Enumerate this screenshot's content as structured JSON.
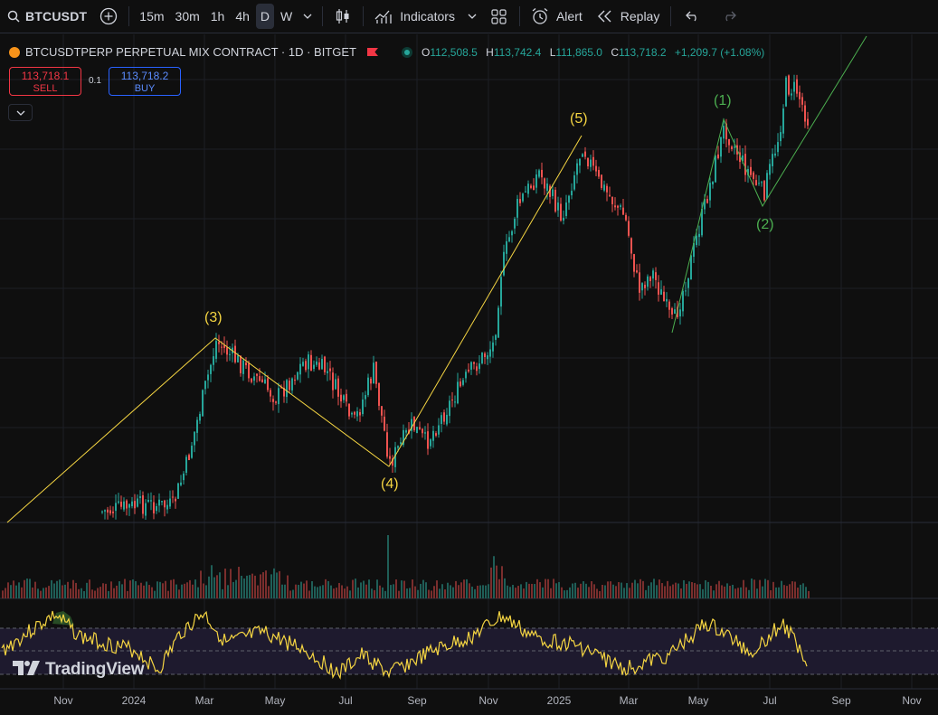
{
  "toolbar": {
    "symbol": "BTCUSDT",
    "intervals": [
      "15m",
      "30m",
      "1h",
      "4h",
      "D",
      "W"
    ],
    "active_interval": "D",
    "indicators_label": "Indicators",
    "alert_label": "Alert",
    "replay_label": "Replay"
  },
  "legend": {
    "title": "BTCUSDTPERP PERPETUAL MIX CONTRACT · 1D · BITGET",
    "open_label": "O",
    "open": "112,508.5",
    "high_label": "H",
    "high": "113,742.4",
    "low_label": "L",
    "low": "111,865.0",
    "close_label": "C",
    "close": "113,718.2",
    "change": "+1,209.7 (+1.08%)"
  },
  "trade": {
    "sell_price": "113,718.1",
    "sell_label": "SELL",
    "spread": "0.1",
    "buy_price": "113,718.2",
    "buy_label": "BUY"
  },
  "waves": {
    "w3": "(3)",
    "w4": "(4)",
    "w5": "(5)",
    "w1": "(1)",
    "w2": "(2)"
  },
  "xaxis": [
    "Nov",
    "2024",
    "Mar",
    "May",
    "Jul",
    "Sep",
    "Nov",
    "2025",
    "Mar",
    "May",
    "Jul",
    "Sep",
    "Nov"
  ],
  "branding": "TradingView",
  "colors": {
    "up": "#26a69a",
    "down": "#ef5350",
    "rsi": "#f5d542",
    "wave_yellow": "#f5d542",
    "wave_green": "#4caf50"
  },
  "chart_data": {
    "type": "candlestick",
    "timeframe": "1D",
    "price_path_approx": [
      {
        "date": "2023-12",
        "price": 43000
      },
      {
        "date": "2024-02",
        "price": 52000
      },
      {
        "date": "2024-03-13",
        "price": 73000
      },
      {
        "date": "2024-05",
        "price": 62000
      },
      {
        "date": "2024-06",
        "price": 70000
      },
      {
        "date": "2024-08-05",
        "price": 49000
      },
      {
        "date": "2024-10",
        "price": 62000
      },
      {
        "date": "2024-12",
        "price": 102000
      },
      {
        "date": "2025-01-20",
        "price": 109000
      },
      {
        "date": "2025-04-07",
        "price": 75000
      },
      {
        "date": "2025-05-22",
        "price": 111000
      },
      {
        "date": "2025-06-22",
        "price": 99000
      },
      {
        "date": "2025-07-14",
        "price": 123000
      },
      {
        "date": "2025-08-01",
        "price": 113718
      }
    ],
    "indicators": [
      "Volume",
      "RSI"
    ]
  }
}
